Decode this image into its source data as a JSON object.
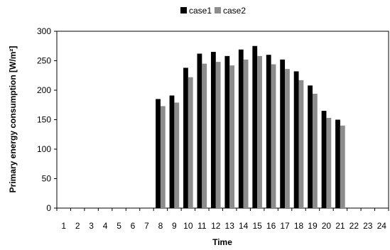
{
  "chart_data": {
    "type": "bar",
    "title": "",
    "xlabel": "Time",
    "ylabel": "Primary energy consumption [W/m²]",
    "ylim": [
      0,
      300
    ],
    "yticks": [
      0,
      50,
      100,
      150,
      200,
      250,
      300
    ],
    "grid": false,
    "legend_position": "top",
    "categories": [
      "1",
      "2",
      "3",
      "4",
      "5",
      "6",
      "7",
      "8",
      "9",
      "10",
      "11",
      "12",
      "13",
      "14",
      "15",
      "16",
      "17",
      "18",
      "19",
      "20",
      "21",
      "22",
      "23",
      "24"
    ],
    "series": [
      {
        "name": "case1",
        "color": "#000000",
        "values": [
          0,
          0,
          0,
          0,
          0,
          0,
          0,
          185,
          191,
          238,
          262,
          265,
          258,
          269,
          275,
          260,
          252,
          232,
          208,
          165,
          150,
          0,
          0,
          0
        ]
      },
      {
        "name": "case2",
        "color": "#8c8c8c",
        "values": [
          0,
          0,
          0,
          0,
          0,
          0,
          0,
          173,
          179,
          222,
          245,
          248,
          242,
          252,
          258,
          244,
          236,
          217,
          194,
          153,
          140,
          0,
          0,
          0
        ]
      }
    ]
  }
}
